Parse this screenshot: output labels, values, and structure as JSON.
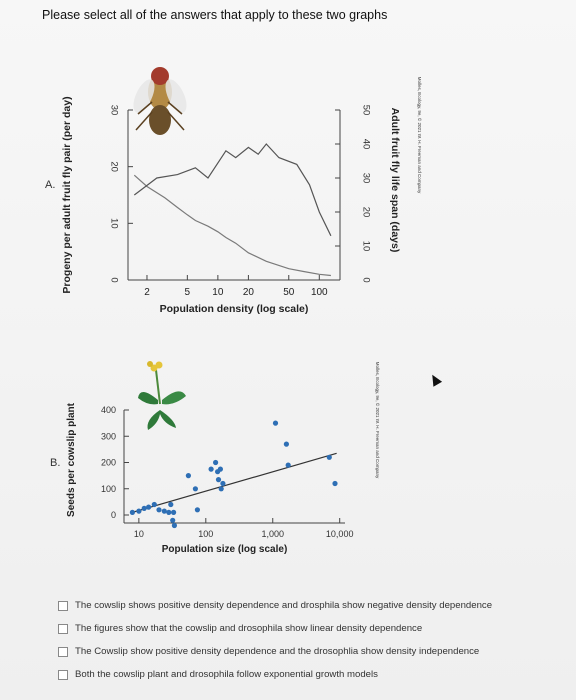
{
  "question": "Please select all of the answers that apply to these two graphs",
  "chart_data": [
    {
      "type": "line",
      "panel_label": "A.",
      "xlabel": "Population density (log scale)",
      "ylabel": "Progeny per adult fruit fly pair (per day)",
      "y2label": "Adult fruit fly life span (days)",
      "x_scale": "log",
      "x_ticks": [
        2,
        5,
        10,
        20,
        50,
        100
      ],
      "y_ticks": [
        0,
        10,
        20,
        30
      ],
      "y2_ticks": [
        0,
        10,
        20,
        30,
        40,
        50
      ],
      "ylim": [
        0,
        30
      ],
      "y2lim": [
        0,
        50
      ],
      "copyright": "Molles, Ecology, 9e, © 2021 W. H. Freeman and Company",
      "series": [
        {
          "axis": "left",
          "x": [
            1.5,
            2,
            3,
            4,
            5,
            6,
            8,
            10,
            12,
            15,
            20,
            30,
            50,
            70,
            100,
            130
          ],
          "y": [
            18.5,
            16.5,
            14.5,
            12.8,
            11.5,
            10.5,
            9.5,
            8.5,
            7.5,
            6.5,
            4.8,
            3.3,
            2.0,
            1.5,
            1.0,
            0.8
          ]
        },
        {
          "axis": "right",
          "x": [
            1.5,
            2.5,
            4,
            6,
            8,
            12,
            15,
            20,
            25,
            30,
            40,
            60,
            80,
            100,
            130
          ],
          "y": [
            25,
            30,
            31,
            33,
            30,
            38,
            36,
            39,
            37,
            40,
            36,
            34,
            28,
            20,
            13
          ]
        }
      ]
    },
    {
      "type": "scatter",
      "panel_label": "B.",
      "xlabel": "Population size (log scale)",
      "ylabel": "Seeds per cowslip plant",
      "x_scale": "log",
      "x_ticks": [
        10,
        100,
        1000,
        10000
      ],
      "x_tick_labels": [
        "10",
        "100",
        "1,000",
        "10,000"
      ],
      "y_ticks": [
        0,
        100,
        200,
        300,
        400
      ],
      "ylim": [
        0,
        400
      ],
      "copyright": "Molles, Ecology, 9e, © 2021 W. H. Freeman and Company",
      "points": {
        "x": [
          8,
          10,
          12,
          14,
          17,
          20,
          24,
          28,
          30,
          33,
          32,
          34,
          55,
          70,
          75,
          120,
          140,
          150,
          155,
          165,
          170,
          180,
          1100,
          1600,
          1700,
          7000,
          8500
        ],
        "y": [
          10,
          15,
          25,
          30,
          40,
          20,
          15,
          10,
          40,
          10,
          -20,
          -40,
          150,
          100,
          20,
          175,
          200,
          165,
          135,
          175,
          100,
          120,
          350,
          270,
          190,
          220,
          120
        ]
      },
      "trendline": {
        "x": [
          8,
          9000
        ],
        "y": [
          10,
          235
        ]
      }
    }
  ],
  "options": [
    {
      "label": "The cowslip shows positive density dependence and drosphila show negative density dependence"
    },
    {
      "label": "The figures show that the cowslip and drosophila show linear density dependence"
    },
    {
      "label": "The Cowslip show positive density dependence and the drosophlia show density independence"
    },
    {
      "label": "Both the cowslip plant and drosophila follow exponential growth models"
    }
  ],
  "colors": {
    "line": "#7a7a7a",
    "point": "#2e6fb5",
    "axis": "#444",
    "trend": "#333"
  }
}
